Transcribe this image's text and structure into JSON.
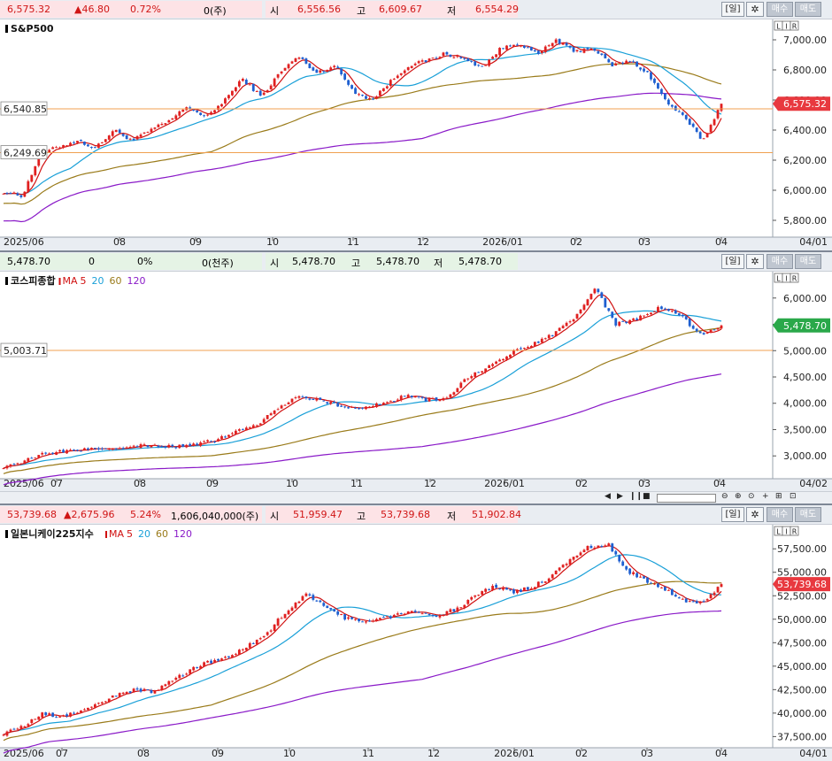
{
  "panels": [
    {
      "id": "spx",
      "quote": {
        "price": "6,575.32",
        "change": "▲46.80",
        "percent": "0.72%",
        "volume": "0(주)",
        "open_label": "시",
        "open": "6,556.56",
        "high_label": "고",
        "high": "6,609.67",
        "low_label": "저",
        "low": "6,554.29"
      },
      "title": "S&P500",
      "ma_legend": [],
      "y_ticks": [
        "7,000.00",
        "6,800.00",
        "6,600.00",
        "6,400.00",
        "6,200.00",
        "6,000.00",
        "5,800.00"
      ],
      "y_values": [
        7000,
        6800,
        6600,
        6400,
        6200,
        6000,
        5800
      ],
      "y_range": [
        5700,
        7100
      ],
      "x_ticks": [
        "2025/06",
        "08",
        "09",
        "10",
        "11",
        "12",
        "2026/01",
        "02",
        "03",
        "04"
      ],
      "end_date": "04/01",
      "ref_lines": [
        {
          "label": "6,540.85",
          "value": 6540.85
        },
        {
          "label": "6,249.69",
          "value": 6249.69
        }
      ],
      "price_tag": {
        "label": "6,575.32",
        "value": 6575.32,
        "color": "#e8393f"
      },
      "anchors": [
        5990,
        5960,
        6240,
        6290,
        6330,
        6280,
        6400,
        6330,
        6400,
        6460,
        6560,
        6480,
        6600,
        6740,
        6620,
        6780,
        6890,
        6780,
        6830,
        6660,
        6600,
        6720,
        6830,
        6860,
        6910,
        6870,
        6820,
        6940,
        6980,
        6900,
        7000,
        6920,
        6950,
        6830,
        6860,
        6780,
        6590,
        6480,
        6330,
        6575
      ],
      "ma_offsets": {
        "m20": -60,
        "m60": -260,
        "m120": -520
      }
    },
    {
      "id": "kospi",
      "quote": {
        "price": "5,478.70",
        "change": "0",
        "percent": "0%",
        "volume": "0(천주)",
        "open_label": "시",
        "open": "5,478.70",
        "high_label": "고",
        "high": "5,478.70",
        "low_label": "저",
        "low": "5,478.70"
      },
      "title": "코스피종합",
      "ma_legend": [
        {
          "label": "MA",
          "color": "#d01010"
        },
        {
          "label": "5",
          "color": "#d01010"
        },
        {
          "label": "20",
          "color": "#1aa0d8"
        },
        {
          "label": "60",
          "color": "#9a7b1a"
        },
        {
          "label": "120",
          "color": "#8a1ac8"
        }
      ],
      "y_ticks": [
        "6,000.00",
        "5,500.00",
        "5,000.00",
        "4,500.00",
        "4,000.00",
        "3,500.00",
        "3,000.00"
      ],
      "y_values": [
        6000,
        5500,
        5000,
        4500,
        4000,
        3500,
        3000
      ],
      "y_range": [
        2600,
        6400
      ],
      "x_ticks": [
        "2025/06",
        "07",
        "08",
        "09",
        "10",
        "11",
        "12",
        "2026/01",
        "02",
        "03",
        "04"
      ],
      "end_date": "04/02",
      "ref_lines": [
        {
          "label": "5,003.71",
          "value": 5003.71
        }
      ],
      "price_tag": {
        "label": "5,478.70",
        "value": 5478.7,
        "color": "#2aa84a"
      },
      "anchors": [
        2800,
        2900,
        3050,
        3100,
        3130,
        3150,
        3180,
        3200,
        3180,
        3200,
        3300,
        3450,
        3600,
        3900,
        4150,
        4050,
        3950,
        3900,
        4000,
        4150,
        4050,
        4100,
        4500,
        4700,
        4950,
        5100,
        5300,
        5600,
        6200,
        5500,
        5600,
        5800,
        5700,
        5300,
        5478
      ],
      "ma_offsets": {
        "m20": -120,
        "m60": -420,
        "m120": -900
      }
    },
    {
      "id": "nikkei",
      "quote": {
        "price": "53,739.68",
        "change": "▲2,675.96",
        "percent": "5.24%",
        "volume": "1,606,040,000(주)",
        "open_label": "시",
        "open": "51,959.47",
        "high_label": "고",
        "high": "53,739.68",
        "low_label": "저",
        "low": "51,902.84"
      },
      "title": "일본니케이225지수",
      "ma_legend": [
        {
          "label": "MA",
          "color": "#d01010"
        },
        {
          "label": "5",
          "color": "#d01010"
        },
        {
          "label": "20",
          "color": "#1aa0d8"
        },
        {
          "label": "60",
          "color": "#9a7b1a"
        },
        {
          "label": "120",
          "color": "#8a1ac8"
        }
      ],
      "y_ticks": [
        "57,500.00",
        "55,000.00",
        "52,500.00",
        "50,000.00",
        "47,500.00",
        "45,000.00",
        "42,500.00",
        "40,000.00",
        "37,500.00"
      ],
      "y_values": [
        57500,
        55000,
        52500,
        50000,
        47500,
        45000,
        42500,
        40000,
        37500
      ],
      "y_range": [
        36500,
        59500
      ],
      "x_ticks": [
        "2025/06",
        "07",
        "08",
        "09",
        "10",
        "11",
        "12",
        "2026/01",
        "02",
        "03",
        "04"
      ],
      "end_date": "04/01",
      "ref_lines": [],
      "price_tag": {
        "label": "53,739.68",
        "value": 53739.68,
        "color": "#e8393f"
      },
      "anchors": [
        37900,
        38500,
        39900,
        39600,
        40200,
        41000,
        41900,
        42500,
        42300,
        43500,
        44800,
        45500,
        46000,
        47200,
        48600,
        51000,
        52600,
        51500,
        50200,
        49700,
        50000,
        50600,
        50900,
        50400,
        51100,
        52600,
        53600,
        52800,
        53500,
        54500,
        56500,
        57700,
        58000,
        55200,
        54100,
        53200,
        52000,
        51700,
        53739
      ],
      "ma_offsets": {
        "m20": -700,
        "m60": -2400,
        "m120": -5600
      }
    }
  ],
  "common": {
    "period_button": "[일]",
    "buy_button": "매수",
    "sell_button": "매도",
    "axis_modes": [
      "L",
      "I",
      "R"
    ],
    "scroll_controls": [
      "◀",
      "▶",
      "❙❙",
      "■",
      "▶"
    ],
    "zoom_controls": [
      "⊖",
      "⊕",
      "⊙",
      "+",
      "⊞",
      "⊡"
    ]
  }
}
